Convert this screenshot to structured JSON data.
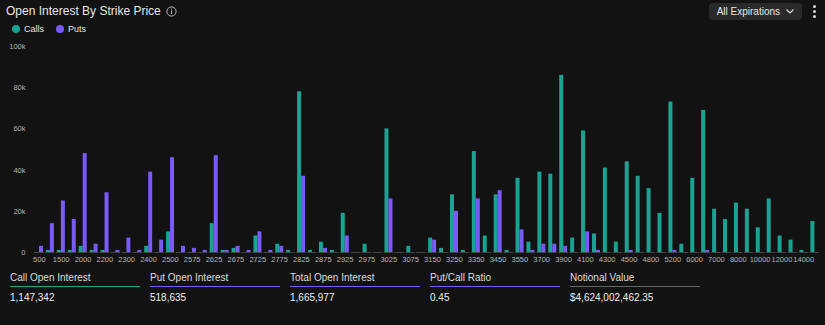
{
  "chart_data": {
    "type": "bar",
    "title": "Open Interest By Strike Price",
    "dropdown": "All Expirations",
    "legend": "top-left",
    "grid": false,
    "categories": [
      "500",
      null,
      "1500",
      null,
      "2000",
      null,
      "2200",
      null,
      "2300",
      null,
      "2400",
      null,
      "2500",
      null,
      "2575",
      null,
      "2625",
      null,
      "2675",
      null,
      "2725",
      null,
      "2775",
      null,
      "2825",
      null,
      "2875",
      null,
      "2925",
      null,
      "2975",
      null,
      "3025",
      null,
      "3075",
      null,
      "3150",
      null,
      "3250",
      null,
      "3350",
      null,
      "3450",
      null,
      "3550",
      null,
      "3700",
      null,
      "3900",
      null,
      "4100",
      null,
      "4300",
      null,
      "4500",
      null,
      "4800",
      null,
      "5200",
      null,
      "6000",
      null,
      "7000",
      null,
      "8000",
      null,
      "10000",
      null,
      "12000",
      null,
      "14000",
      null
    ],
    "series": [
      {
        "name": "Calls",
        "color": "#1aa392",
        "values": [
          0,
          1000,
          1000,
          1000,
          3000,
          1000,
          1000,
          0,
          0,
          0,
          3000,
          0,
          10000,
          0,
          0,
          0,
          14000,
          1000,
          2000,
          0,
          8000,
          0,
          4000,
          1000,
          78000,
          1000,
          5000,
          1000,
          19000,
          0,
          4000,
          0,
          60000,
          0,
          3000,
          0,
          7000,
          2000,
          28000,
          1000,
          49000,
          8000,
          28000,
          1000,
          36000,
          5000,
          39000,
          38000,
          86000,
          7000,
          59000,
          9000,
          41000,
          5000,
          44000,
          37000,
          31000,
          19000,
          73000,
          4000,
          36000,
          69000,
          21000,
          16000,
          24000,
          21000,
          12000,
          26000,
          8000,
          6000,
          1000,
          15000
        ]
      },
      {
        "name": "Puts",
        "color": "#7a5af8",
        "values": [
          3000,
          14000,
          25000,
          16000,
          48000,
          4000,
          29000,
          1000,
          7000,
          1000,
          39000,
          6000,
          46000,
          3000,
          2000,
          1000,
          47000,
          1000,
          3000,
          1000,
          10000,
          1000,
          3000,
          0,
          37000,
          0,
          2000,
          0,
          8000,
          0,
          0,
          0,
          26000,
          0,
          0,
          0,
          6000,
          0,
          20000,
          0,
          26000,
          0,
          30000,
          0,
          11000,
          1000,
          4000,
          4000,
          3000,
          0,
          10000,
          1000,
          0,
          0,
          1000,
          0,
          0,
          0,
          1000,
          0,
          0,
          1000,
          0,
          0,
          0,
          0,
          0,
          0,
          0,
          0,
          0,
          0
        ]
      }
    ],
    "ylim": [
      0,
      100000
    ],
    "yticks": [
      {
        "value": 0,
        "label": "0"
      },
      {
        "value": 20000,
        "label": "20k"
      },
      {
        "value": 40000,
        "label": "40k"
      },
      {
        "value": 60000,
        "label": "60k"
      },
      {
        "value": 80000,
        "label": "80k"
      },
      {
        "value": 100000,
        "label": "100k"
      }
    ],
    "stats": [
      {
        "label": "Call Open Interest",
        "value": "1,147,342"
      },
      {
        "label": "Put Open Interest",
        "value": "518,635"
      },
      {
        "label": "Total Open Interest",
        "value": "1,665,977"
      },
      {
        "label": "Put/Call Ratio",
        "value": "0.45"
      },
      {
        "label": "Notional Value",
        "value": "$4,624,002,462.35"
      }
    ]
  }
}
